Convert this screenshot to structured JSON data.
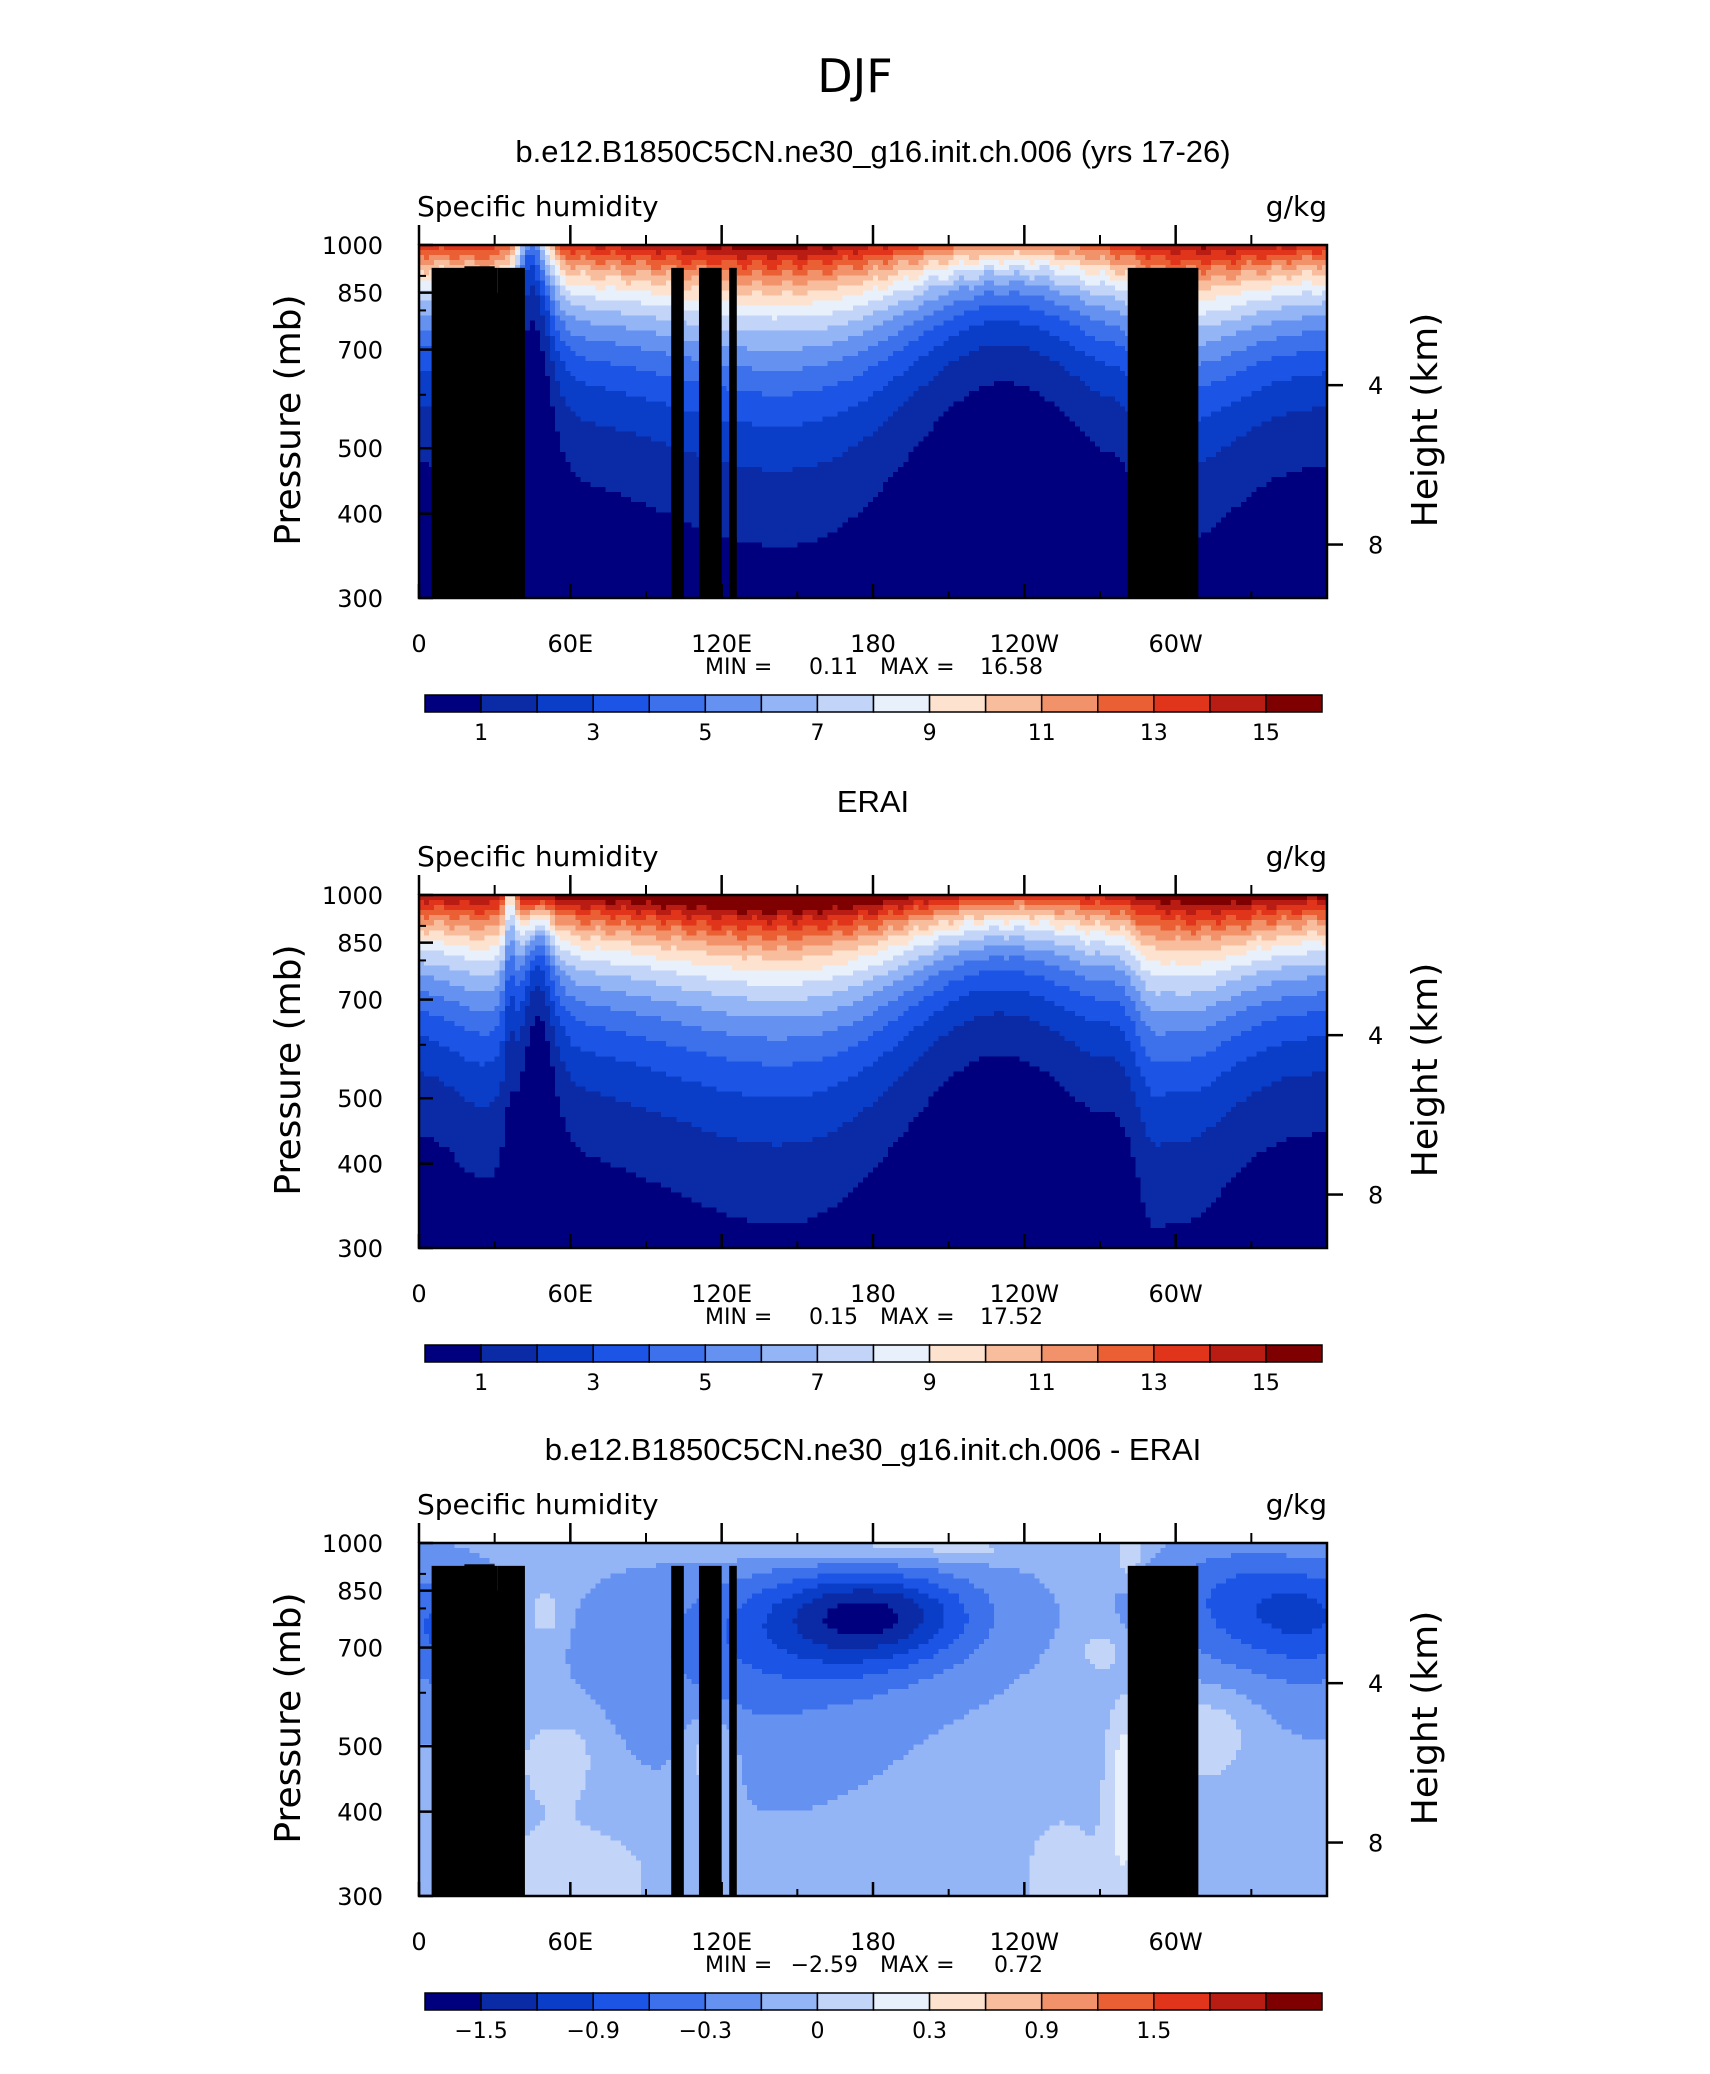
{
  "figure": {
    "title": "DJF"
  },
  "scales": {
    "abs": {
      "levels": [
        1,
        2,
        3,
        4,
        5,
        6,
        7,
        8,
        9,
        10,
        11,
        12,
        13,
        14,
        15
      ],
      "tick_labels": [
        "1",
        "3",
        "5",
        "7",
        "9",
        "11",
        "13",
        "15"
      ],
      "colors": [
        "#00007f",
        "#0a2aa6",
        "#0b3ec8",
        "#1c55e6",
        "#3d71ec",
        "#6592f1",
        "#93b4f5",
        "#c2d5f9",
        "#e8f0fb",
        "#fde3cf",
        "#f8bd9c",
        "#f2926a",
        "#ea5f33",
        "#e0341b",
        "#b81c13",
        "#7f0000"
      ]
    },
    "diff": {
      "levels": [
        -2.1,
        -1.8,
        -1.5,
        -1.2,
        -0.9,
        -0.6,
        -0.3,
        0,
        0.3,
        0.6,
        0.9,
        1.2,
        1.5,
        1.8,
        2.1
      ],
      "tick_labels": [
        "−1.5",
        "−0.9",
        "−0.3",
        "0",
        "0.3",
        "0.9",
        "1.5"
      ],
      "colors": [
        "#00007f",
        "#0a2aa6",
        "#0b3ec8",
        "#1c55e6",
        "#3d71ec",
        "#6592f1",
        "#93b4f5",
        "#c2d5f9",
        "#e8f0fb",
        "#fde3cf",
        "#f8bd9c",
        "#f2926a",
        "#ea5f33",
        "#e0341b",
        "#b81c13",
        "#7f0000"
      ]
    }
  },
  "chart_data": [
    {
      "type": "heatmap",
      "title": "b.e12.B1850C5CN.ne30_g16.init.ch.006 (yrs 17-26)",
      "left_string": "Specific humidity",
      "right_string": "g/kg",
      "ylabel": "Pressure (mb)",
      "ylabel_right": "Height (km)",
      "x_ticks": [
        "0",
        "60E",
        "120E",
        "180",
        "120W",
        "60W"
      ],
      "x_tick_values": [
        0,
        60,
        120,
        180,
        240,
        300
      ],
      "xlim": [
        0,
        360
      ],
      "y_ticks": [
        "300",
        "400",
        "500",
        "700",
        "850",
        "1000"
      ],
      "y_tick_values": [
        300,
        400,
        500,
        700,
        850,
        1000
      ],
      "ylim": [
        1000,
        300
      ],
      "y_right_ticks": [
        "8",
        "4"
      ],
      "stats": {
        "min_label": "MIN =",
        "min": "0.11",
        "max_label": "MAX =",
        "max": "16.58"
      },
      "scale": "abs",
      "field": "model",
      "topography": true
    },
    {
      "type": "heatmap",
      "title": "ERAI",
      "left_string": "Specific humidity",
      "right_string": "g/kg",
      "ylabel": "Pressure (mb)",
      "ylabel_right": "Height (km)",
      "x_ticks": [
        "0",
        "60E",
        "120E",
        "180",
        "120W",
        "60W"
      ],
      "x_tick_values": [
        0,
        60,
        120,
        180,
        240,
        300
      ],
      "xlim": [
        0,
        360
      ],
      "y_ticks": [
        "300",
        "400",
        "500",
        "700",
        "850",
        "1000"
      ],
      "y_tick_values": [
        300,
        400,
        500,
        700,
        850,
        1000
      ],
      "ylim": [
        1000,
        300
      ],
      "y_right_ticks": [
        "8",
        "4"
      ],
      "stats": {
        "min_label": "MIN =",
        "min": "0.15",
        "max_label": "MAX =",
        "max": "17.52"
      },
      "scale": "abs",
      "field": "obs",
      "topography": false
    },
    {
      "type": "heatmap",
      "title": "b.e12.B1850C5CN.ne30_g16.init.ch.006 - ERAI",
      "left_string": "Specific humidity",
      "right_string": "g/kg",
      "ylabel": "Pressure (mb)",
      "ylabel_right": "Height (km)",
      "x_ticks": [
        "0",
        "60E",
        "120E",
        "180",
        "120W",
        "60W"
      ],
      "x_tick_values": [
        0,
        60,
        120,
        180,
        240,
        300
      ],
      "xlim": [
        0,
        360
      ],
      "y_ticks": [
        "300",
        "400",
        "500",
        "700",
        "850",
        "1000"
      ],
      "y_tick_values": [
        300,
        400,
        500,
        700,
        850,
        1000
      ],
      "ylim": [
        1000,
        300
      ],
      "y_right_ticks": [
        "8",
        "4"
      ],
      "stats": {
        "min_label": "MIN =",
        "min": "−2.59",
        "max_label": "MAX =",
        "max": "0.72"
      },
      "scale": "diff",
      "field": "diff",
      "topography": true
    }
  ]
}
